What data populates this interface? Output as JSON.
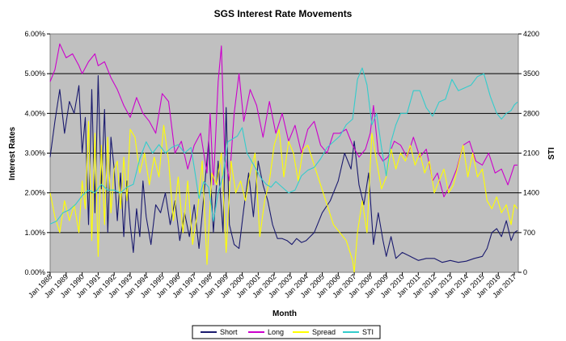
{
  "chart_data": {
    "type": "line",
    "title": "SGS Interest Rate Movements",
    "xlabel": "Month",
    "ylabel": "Interest Rates",
    "y2label": "STI",
    "ylim": [
      0,
      6
    ],
    "y2lim": [
      0,
      4200
    ],
    "xlim": [
      1988.0,
      2017.25
    ],
    "y_ticks": [
      "0.00%",
      "1.00%",
      "2.00%",
      "3.00%",
      "4.00%",
      "5.00%",
      "6.00%"
    ],
    "y2_ticks": [
      "0",
      "700",
      "1400",
      "2100",
      "2800",
      "3500",
      "4200"
    ],
    "x_ticks": [
      "Jan 1988",
      "Jan 1989",
      "Jan 1990",
      "Jan 1991",
      "Jan 1992",
      "Jan 1993",
      "Jan 1994",
      "Jan 1995",
      "Jan 1996",
      "Jan 1997",
      "Jan 1998",
      "Jan 1999",
      "Jan 2000",
      "Jan 2001",
      "Jan 2002",
      "Jan 2003",
      "Jan 2004",
      "Jan 2005",
      "Jan 2006",
      "Jan 2007",
      "Jan 2008",
      "Jan 2009",
      "Jan 2010",
      "Jan 2011",
      "Jan 2012",
      "Jan 2013",
      "Jan 2014",
      "Jan 2015",
      "Jan 2016",
      "Jan 2017"
    ],
    "grid": true,
    "legend_position": "bottom",
    "series": [
      {
        "name": "Short",
        "axis": "left",
        "color": "#1a1a6e",
        "x": [
          1988.0,
          1988.3,
          1988.6,
          1988.9,
          1989.2,
          1989.5,
          1989.8,
          1990.0,
          1990.2,
          1990.4,
          1990.6,
          1990.8,
          1991.0,
          1991.2,
          1991.4,
          1991.6,
          1991.8,
          1992.0,
          1992.2,
          1992.4,
          1992.6,
          1992.8,
          1993.0,
          1993.2,
          1993.4,
          1993.6,
          1993.8,
          1994.0,
          1994.3,
          1994.6,
          1994.9,
          1995.2,
          1995.5,
          1995.8,
          1996.1,
          1996.4,
          1996.7,
          1997.0,
          1997.3,
          1997.6,
          1997.9,
          1998.2,
          1998.5,
          1998.8,
          1999.0,
          1999.2,
          1999.5,
          1999.8,
          2000.1,
          2000.4,
          2000.7,
          2001.0,
          2001.3,
          2001.6,
          2001.9,
          2002.2,
          2002.5,
          2002.8,
          2003.1,
          2003.4,
          2003.7,
          2004.0,
          2004.5,
          2005.0,
          2005.5,
          2006.0,
          2006.4,
          2006.8,
          2007.0,
          2007.3,
          2007.6,
          2007.9,
          2008.2,
          2008.5,
          2008.8,
          2009.0,
          2009.3,
          2009.6,
          2010.0,
          2010.5,
          2011.0,
          2011.5,
          2012.0,
          2012.5,
          2013.0,
          2013.5,
          2014.0,
          2014.5,
          2015.0,
          2015.3,
          2015.6,
          2015.9,
          2016.2,
          2016.5,
          2016.8,
          2017.0,
          2017.2
        ],
        "values": [
          2.9,
          3.8,
          4.6,
          3.5,
          4.3,
          4.0,
          4.7,
          3.0,
          3.9,
          1.2,
          4.6,
          1.5,
          4.95,
          2.1,
          4.1,
          1.0,
          3.4,
          2.6,
          1.3,
          2.5,
          0.9,
          2.3,
          1.2,
          0.5,
          1.6,
          0.9,
          2.3,
          1.4,
          0.7,
          1.7,
          1.5,
          2.0,
          1.2,
          1.8,
          0.8,
          1.5,
          0.9,
          1.7,
          0.6,
          1.9,
          3.3,
          1.0,
          2.8,
          1.0,
          4.15,
          1.2,
          0.7,
          0.6,
          1.6,
          2.5,
          1.4,
          2.8,
          2.2,
          1.8,
          1.2,
          0.85,
          0.85,
          0.8,
          0.7,
          0.85,
          0.75,
          0.8,
          1.0,
          1.5,
          1.8,
          2.3,
          3.0,
          2.6,
          3.3,
          2.2,
          1.7,
          2.5,
          0.7,
          1.5,
          0.8,
          0.4,
          0.9,
          0.35,
          0.5,
          0.4,
          0.3,
          0.35,
          0.35,
          0.25,
          0.3,
          0.25,
          0.28,
          0.35,
          0.4,
          0.6,
          1.0,
          1.1,
          0.9,
          1.3,
          0.8,
          1.0,
          1.05
        ]
      },
      {
        "name": "Long",
        "axis": "left",
        "color": "#cc00cc",
        "x": [
          1988.0,
          1988.3,
          1988.6,
          1989.0,
          1989.4,
          1989.8,
          1990.0,
          1990.4,
          1990.8,
          1991.0,
          1991.4,
          1991.8,
          1992.2,
          1992.6,
          1993.0,
          1993.4,
          1993.8,
          1994.2,
          1994.6,
          1995.0,
          1995.4,
          1995.8,
          1996.2,
          1996.6,
          1997.0,
          1997.4,
          1997.8,
          1998.0,
          1998.2,
          1998.5,
          1998.7,
          1998.9,
          1999.2,
          1999.5,
          1999.8,
          2000.1,
          2000.5,
          2000.9,
          2001.3,
          2001.7,
          2002.1,
          2002.5,
          2002.9,
          2003.3,
          2003.7,
          2004.1,
          2004.5,
          2004.9,
          2005.3,
          2005.7,
          2006.1,
          2006.5,
          2006.9,
          2007.3,
          2007.7,
          2008.0,
          2008.2,
          2008.5,
          2008.8,
          2009.1,
          2009.5,
          2009.9,
          2010.3,
          2010.7,
          2011.1,
          2011.5,
          2011.9,
          2012.2,
          2012.6,
          2013.0,
          2013.4,
          2013.8,
          2014.2,
          2014.6,
          2015.0,
          2015.4,
          2015.8,
          2016.2,
          2016.6,
          2017.0,
          2017.2
        ],
        "values": [
          4.8,
          5.1,
          5.75,
          5.4,
          5.5,
          5.2,
          5.0,
          5.3,
          5.5,
          5.2,
          5.3,
          4.9,
          4.6,
          4.2,
          3.9,
          4.4,
          4.0,
          3.8,
          3.5,
          4.5,
          4.3,
          3.0,
          3.3,
          2.6,
          3.2,
          3.5,
          2.5,
          4.0,
          2.2,
          4.8,
          5.7,
          3.0,
          2.3,
          4.0,
          5.0,
          3.8,
          4.6,
          4.2,
          3.4,
          4.3,
          3.5,
          4.0,
          3.3,
          3.7,
          3.0,
          3.6,
          3.8,
          3.2,
          3.0,
          3.5,
          3.5,
          3.6,
          3.2,
          2.9,
          3.1,
          3.5,
          4.2,
          3.0,
          2.8,
          2.9,
          3.3,
          3.2,
          2.9,
          3.4,
          2.9,
          3.1,
          2.3,
          2.5,
          1.9,
          2.2,
          2.6,
          3.2,
          3.3,
          2.8,
          2.7,
          3.0,
          2.5,
          2.6,
          2.2,
          2.7,
          2.7
        ]
      },
      {
        "name": "Spread",
        "axis": "left",
        "color": "#ffff00",
        "x": [
          1988.0,
          1988.3,
          1988.6,
          1988.9,
          1989.2,
          1989.5,
          1989.8,
          1990.0,
          1990.2,
          1990.4,
          1990.6,
          1990.8,
          1991.0,
          1991.2,
          1991.4,
          1991.6,
          1991.8,
          1992.0,
          1992.2,
          1992.4,
          1992.6,
          1992.8,
          1993.0,
          1993.3,
          1993.6,
          1993.9,
          1994.2,
          1994.5,
          1994.8,
          1995.1,
          1995.4,
          1995.7,
          1996.0,
          1996.3,
          1996.6,
          1996.9,
          1997.2,
          1997.5,
          1997.8,
          1998.1,
          1998.4,
          1998.7,
          1999.0,
          1999.3,
          1999.6,
          1999.9,
          2000.2,
          2000.5,
          2000.8,
          2001.1,
          2001.4,
          2001.7,
          2002.0,
          2002.3,
          2002.6,
          2002.9,
          2003.2,
          2003.5,
          2003.8,
          2004.1,
          2004.5,
          2004.9,
          2005.3,
          2005.7,
          2006.1,
          2006.5,
          2006.9,
          2007.0,
          2007.2,
          2007.5,
          2007.8,
          2008.1,
          2008.4,
          2008.7,
          2009.0,
          2009.3,
          2009.6,
          2009.9,
          2010.2,
          2010.5,
          2010.8,
          2011.1,
          2011.4,
          2011.7,
          2012.0,
          2012.3,
          2012.6,
          2012.9,
          2013.2,
          2013.5,
          2013.8,
          2014.1,
          2014.4,
          2014.7,
          2015.0,
          2015.3,
          2015.6,
          2015.9,
          2016.2,
          2016.5,
          2016.8,
          2017.0,
          2017.2
        ],
        "values": [
          2.0,
          1.4,
          1.0,
          1.8,
          1.3,
          1.7,
          1.0,
          2.3,
          1.6,
          3.8,
          0.8,
          3.5,
          0.4,
          3.2,
          1.2,
          3.4,
          1.5,
          2.6,
          2.8,
          1.6,
          2.9,
          1.8,
          3.6,
          3.4,
          2.5,
          3.0,
          2.2,
          2.9,
          2.4,
          3.7,
          2.8,
          1.3,
          2.4,
          1.0,
          2.3,
          0.7,
          1.5,
          2.8,
          0.2,
          2.5,
          2.2,
          3.0,
          0.5,
          2.8,
          2.0,
          2.3,
          1.8,
          2.5,
          3.0,
          0.9,
          1.8,
          2.3,
          3.2,
          3.6,
          2.4,
          3.3,
          3.0,
          2.3,
          3.1,
          3.2,
          2.7,
          2.2,
          1.7,
          1.2,
          1.0,
          0.8,
          0.3,
          0.0,
          1.0,
          1.8,
          1.0,
          3.5,
          2.8,
          2.1,
          2.4,
          3.1,
          2.6,
          3.0,
          2.8,
          3.2,
          2.7,
          3.0,
          2.5,
          2.8,
          2.0,
          2.3,
          2.6,
          2.0,
          2.2,
          2.7,
          3.2,
          2.4,
          3.0,
          2.4,
          2.6,
          1.8,
          1.6,
          1.9,
          1.5,
          1.7,
          1.2,
          1.7,
          1.6
        ]
      },
      {
        "name": "STI",
        "axis": "right",
        "color": "#33cccc",
        "x": [
          1988.0,
          1988.4,
          1988.8,
          1989.2,
          1989.6,
          1990.0,
          1990.4,
          1990.8,
          1991.2,
          1991.6,
          1992.0,
          1992.4,
          1992.8,
          1993.2,
          1993.6,
          1994.0,
          1994.4,
          1994.8,
          1995.2,
          1995.6,
          1996.0,
          1996.4,
          1996.8,
          1997.0,
          1997.3,
          1997.6,
          1997.9,
          1998.2,
          1998.5,
          1998.8,
          1999.1,
          1999.4,
          1999.7,
          2000.0,
          2000.3,
          2000.6,
          2000.9,
          2001.2,
          2001.5,
          2001.8,
          2002.1,
          2002.5,
          2002.9,
          2003.3,
          2003.7,
          2004.1,
          2004.5,
          2004.9,
          2005.3,
          2005.7,
          2006.1,
          2006.5,
          2006.9,
          2007.2,
          2007.5,
          2007.8,
          2008.1,
          2008.4,
          2008.7,
          2009.0,
          2009.3,
          2009.6,
          2009.9,
          2010.3,
          2010.7,
          2011.1,
          2011.5,
          2011.9,
          2012.3,
          2012.7,
          2013.1,
          2013.5,
          2013.9,
          2014.3,
          2014.7,
          2015.1,
          2015.5,
          2015.9,
          2016.2,
          2016.5,
          2016.8,
          2017.0,
          2017.2
        ],
        "values": [
          850,
          900,
          1050,
          1100,
          1200,
          1350,
          1450,
          1400,
          1550,
          1450,
          1450,
          1400,
          1500,
          1550,
          2000,
          2300,
          2100,
          2250,
          2100,
          2200,
          2250,
          2100,
          2200,
          1850,
          1300,
          1600,
          1500,
          900,
          1400,
          1700,
          2300,
          2350,
          2400,
          2550,
          2100,
          1950,
          1800,
          1650,
          1550,
          1500,
          1600,
          1500,
          1400,
          1450,
          1700,
          1800,
          1850,
          2000,
          2200,
          2300,
          2400,
          2600,
          2700,
          3400,
          3600,
          3300,
          2600,
          2800,
          2200,
          1700,
          2300,
          2600,
          2800,
          2800,
          3200,
          3200,
          2900,
          2750,
          3000,
          3050,
          3400,
          3200,
          3250,
          3300,
          3450,
          3500,
          3100,
          2800,
          2700,
          2800,
          2850,
          2950,
          3000
        ]
      }
    ]
  },
  "legend": {
    "items": [
      {
        "label": "Short",
        "color": "#1a1a6e"
      },
      {
        "label": "Long",
        "color": "#cc00cc"
      },
      {
        "label": "Spread",
        "color": "#ffff00"
      },
      {
        "label": "STI",
        "color": "#33cccc"
      }
    ]
  }
}
